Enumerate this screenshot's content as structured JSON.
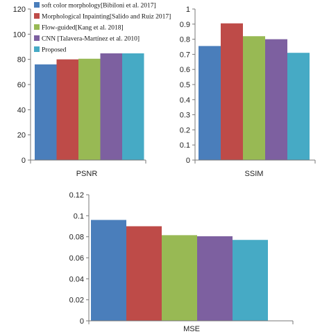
{
  "chart_data": [
    {
      "type": "bar",
      "xlabel": "PSNR",
      "series": [
        {
          "name": "soft color morphology[Bibiloni et al. 2017]",
          "values": [
            76
          ]
        },
        {
          "name": "Morphological Inpainting[Salido and Ruiz 2017]",
          "values": [
            80
          ]
        },
        {
          "name": "Flow-guided[Kang et al. 2018]",
          "values": [
            80.5
          ]
        },
        {
          "name": "CNN [Talavera-Martínez et al. 2010]",
          "values": [
            90
          ]
        },
        {
          "name": "Proposed",
          "values": [
            95.5
          ]
        }
      ],
      "ylim": [
        0,
        120
      ],
      "yticks": [
        "0",
        "20",
        "40",
        "60",
        "80",
        "100",
        "120"
      ],
      "legend": "top-left"
    },
    {
      "type": "bar",
      "xlabel": "SSIM",
      "series": [
        {
          "name": "soft color morphology[Bibiloni et al. 2017]",
          "values": [
            0.755
          ]
        },
        {
          "name": "Morphological Inpainting[Salido and Ruiz 2017]",
          "values": [
            0.905
          ]
        },
        {
          "name": "Flow-guided[Kang et al. 2018]",
          "values": [
            0.82
          ]
        },
        {
          "name": "CNN [Talavera-Martínez et al. 2010]",
          "values": [
            0.8
          ]
        },
        {
          "name": "Proposed",
          "values": [
            0.71
          ]
        }
      ],
      "ylim": [
        0,
        1
      ],
      "yticks": [
        "0",
        "0.1",
        "0.2",
        "0.3",
        "0.4",
        "0.5",
        "0.6",
        "0.7",
        "0.8",
        "0.9",
        "1"
      ]
    },
    {
      "type": "bar",
      "xlabel": "MSE",
      "series": [
        {
          "name": "soft color morphology[Bibiloni et al. 2017]",
          "values": [
            0.096
          ]
        },
        {
          "name": "Morphological Inpainting[Salido and Ruiz 2017]",
          "values": [
            0.09
          ]
        },
        {
          "name": "Flow-guided[Kang et al. 2018]",
          "values": [
            0.0815
          ]
        },
        {
          "name": "CNN [Talavera-Martínez et al. 2010]",
          "values": [
            0.0805
          ]
        },
        {
          "name": "Proposed",
          "values": [
            0.077
          ]
        }
      ],
      "ylim": [
        0,
        0.12
      ],
      "yticks": [
        "0",
        "0.02",
        "0.04",
        "0.06",
        "0.08",
        "0.1",
        "0.12"
      ]
    }
  ],
  "colors": [
    "#4a7ebb",
    "#be4b48",
    "#98b954",
    "#7d60a0",
    "#46aac5"
  ]
}
